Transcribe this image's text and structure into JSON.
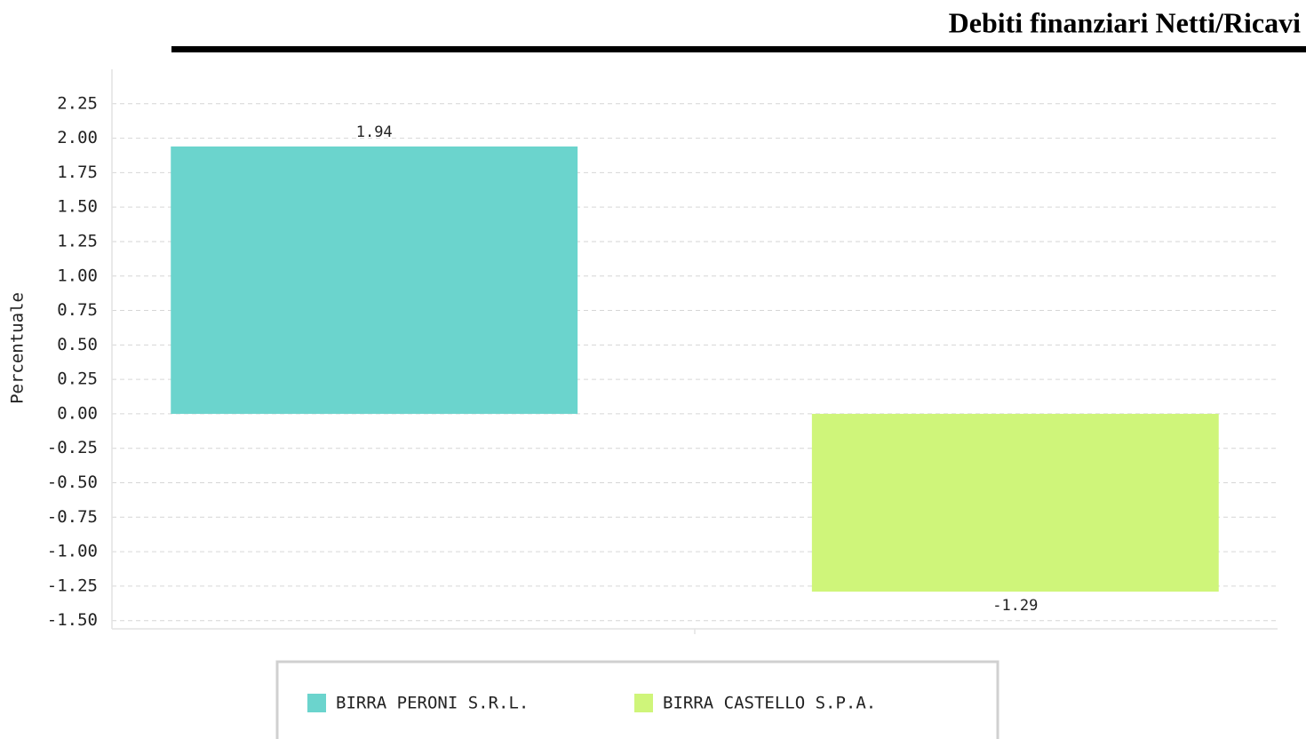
{
  "chart_data": {
    "type": "bar",
    "title": "Debiti finanziari Netti/Ricavi",
    "y_label": "Percentuale",
    "categories": [
      null
    ],
    "series": [
      {
        "name": "BIRRA PERONI S.R.L.",
        "color": "#6bd4cd",
        "values": [
          1.94
        ]
      },
      {
        "name": "BIRRA CASTELLO S.P.A.",
        "color": "#cff57a",
        "values": [
          -1.29
        ]
      }
    ],
    "ylim": [
      -1.56,
      2.5
    ],
    "yticks": [
      {
        "value": -1.5,
        "label": "-1.50"
      },
      {
        "value": -1.25,
        "label": "-1.25"
      },
      {
        "value": -1,
        "label": "-1.00"
      },
      {
        "value": -0.75,
        "label": "-0.75"
      },
      {
        "value": -0.5,
        "label": "-0.50"
      },
      {
        "value": -0.25,
        "label": "-0.25"
      },
      {
        "value": 0,
        "label": "0.00"
      },
      {
        "value": 0.25,
        "label": "0.25"
      },
      {
        "value": 0.5,
        "label": "0.50"
      },
      {
        "value": 0.75,
        "label": "0.75"
      },
      {
        "value": 1,
        "label": "1.00"
      },
      {
        "value": 1.25,
        "label": "1.25"
      },
      {
        "value": 1.5,
        "label": "1.50"
      },
      {
        "value": 1.75,
        "label": "1.75"
      },
      {
        "value": 2,
        "label": "2.00"
      },
      {
        "value": 2.25,
        "label": "2.25"
      }
    ],
    "grid": true
  }
}
